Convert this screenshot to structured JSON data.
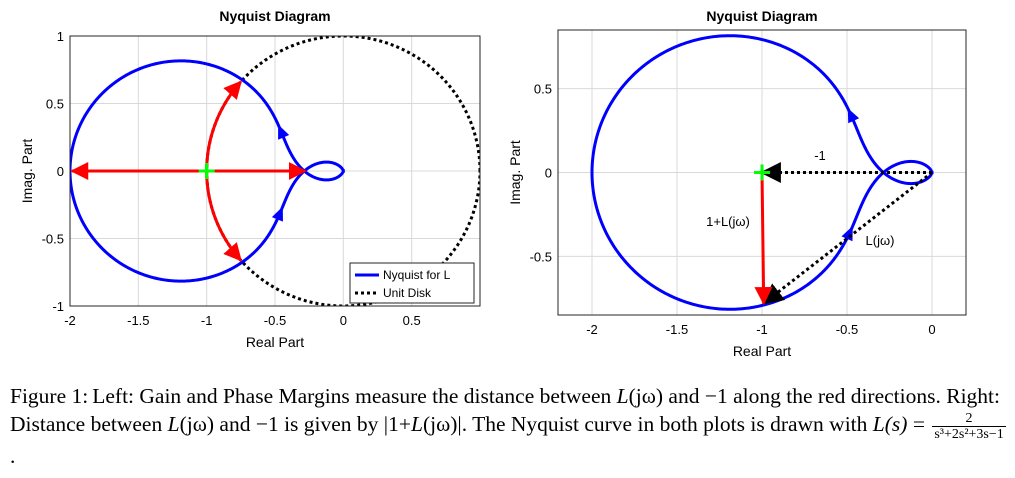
{
  "chart_data": [
    {
      "type": "line",
      "title": "Nyquist Diagram",
      "xlabel": "Real Part",
      "ylabel": "Imag. Part",
      "xlim": [
        -2,
        1
      ],
      "ylim": [
        -1,
        1
      ],
      "xticks": [
        "-2",
        "-1.5",
        "-1",
        "-0.5",
        "0",
        "0.5"
      ],
      "yticks": [
        "-1",
        "-0.5",
        "0",
        "0.5",
        "1"
      ],
      "grid": true,
      "legend_position": "bottom-right",
      "series": [
        {
          "name": "Nyquist for L",
          "color": "#0000ff",
          "style": "solid",
          "function": "L(s)=2/(s^3+2s^2+3s-1)"
        },
        {
          "name": "Unit Disk",
          "color": "#000000",
          "style": "dotted",
          "center": [
            0,
            0
          ],
          "radius": 1
        }
      ],
      "markers": [
        {
          "x": -1,
          "y": 0,
          "shape": "plus",
          "color": "#00ff00"
        }
      ],
      "annotations": [
        {
          "type": "arrow",
          "color": "#ff0000",
          "from": [
            -1,
            0
          ],
          "to": [
            -1.985,
            0
          ]
        },
        {
          "type": "arrow",
          "color": "#ff0000",
          "from": [
            -1,
            0
          ],
          "to": [
            -0.28,
            0
          ]
        },
        {
          "type": "arc",
          "color": "#ff0000",
          "center": [
            0,
            0
          ],
          "radius": 1,
          "from": [
            -1,
            0
          ],
          "to": [
            -0.75,
            0.66
          ]
        },
        {
          "type": "arc",
          "color": "#ff0000",
          "center": [
            0,
            0
          ],
          "radius": 1,
          "from": [
            -1,
            0
          ],
          "to": [
            -0.75,
            -0.66
          ]
        }
      ]
    },
    {
      "type": "line",
      "title": "Nyquist Diagram",
      "xlabel": "Real Part",
      "ylabel": "Imag. Part",
      "xlim": [
        -2.2,
        0.2
      ],
      "ylim": [
        -0.85,
        0.85
      ],
      "xticks": [
        "-2",
        "-1.5",
        "-1",
        "-0.5",
        "0"
      ],
      "yticks": [
        "-0.5",
        "0",
        "0.5"
      ],
      "grid": true,
      "series": [
        {
          "name": "",
          "color": "#0000ff",
          "style": "solid",
          "function": "L(s)=2/(s^3+2s^2+3s-1)"
        }
      ],
      "markers": [
        {
          "x": -1,
          "y": 0,
          "shape": "plus",
          "color": "#00ff00"
        }
      ],
      "annotations": [
        {
          "type": "arrow",
          "color": "#ff0000",
          "from": [
            -1,
            0
          ],
          "to": [
            -0.99,
            -0.78
          ],
          "label": "1+L(jω)"
        },
        {
          "type": "arrow",
          "color": "#000000",
          "style": "dotted",
          "from": [
            0,
            0
          ],
          "to": [
            -1,
            0
          ],
          "label": "-1"
        },
        {
          "type": "arrow",
          "color": "#000000",
          "style": "dotted",
          "from": [
            0,
            0
          ],
          "to": [
            -0.99,
            -0.78
          ],
          "label": "L(jω)"
        }
      ]
    }
  ],
  "caption": {
    "label": "Figure 1:",
    "p1": "Left: Gain and Phase Margins measure the distance between ",
    "Ljw": "L",
    "jw": "(jω)",
    "p2": " and −1 along the red directions. Right: Distance between ",
    "p3": " and −1 is given by |1+",
    "p4": "|. The Nyquist curve in both plots is drawn with ",
    "Ls": "L(s)",
    "eq": " = ",
    "num": "2",
    "den": "s³+2s²+3s−1",
    "end": "."
  }
}
